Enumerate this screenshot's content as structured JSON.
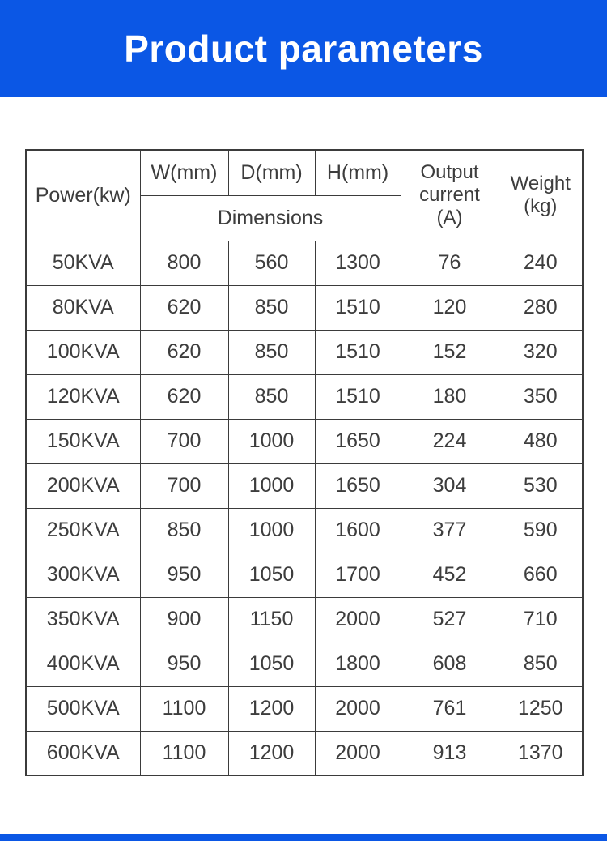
{
  "banner": {
    "title": "Product parameters"
  },
  "colors": {
    "accent_blue": "#0b57e5",
    "border_gray": "#3b3b3b",
    "text_gray": "#3d3d3d"
  },
  "table": {
    "header": {
      "power": "Power(kw)",
      "w": "W(mm)",
      "d": "D(mm)",
      "h": "H(mm)",
      "dimensions": "Dimensions",
      "output_current": "Output\ncurrent\n(A)",
      "weight": "Weight\n(kg)"
    },
    "rows": [
      {
        "power": "50KVA",
        "w": "800",
        "d": "560",
        "h": "1300",
        "current": "76",
        "weight": "240"
      },
      {
        "power": "80KVA",
        "w": "620",
        "d": "850",
        "h": "1510",
        "current": "120",
        "weight": "280"
      },
      {
        "power": "100KVA",
        "w": "620",
        "d": "850",
        "h": "1510",
        "current": "152",
        "weight": "320"
      },
      {
        "power": "120KVA",
        "w": "620",
        "d": "850",
        "h": "1510",
        "current": "180",
        "weight": "350"
      },
      {
        "power": "150KVA",
        "w": "700",
        "d": "1000",
        "h": "1650",
        "current": "224",
        "weight": "480"
      },
      {
        "power": "200KVA",
        "w": "700",
        "d": "1000",
        "h": "1650",
        "current": "304",
        "weight": "530"
      },
      {
        "power": "250KVA",
        "w": "850",
        "d": "1000",
        "h": "1600",
        "current": "377",
        "weight": "590"
      },
      {
        "power": "300KVA",
        "w": "950",
        "d": "1050",
        "h": "1700",
        "current": "452",
        "weight": "660"
      },
      {
        "power": "350KVA",
        "w": "900",
        "d": "1150",
        "h": "2000",
        "current": "527",
        "weight": "710"
      },
      {
        "power": "400KVA",
        "w": "950",
        "d": "1050",
        "h": "1800",
        "current": "608",
        "weight": "850"
      },
      {
        "power": "500KVA",
        "w": "1100",
        "d": "1200",
        "h": "2000",
        "current": "761",
        "weight": "1250"
      },
      {
        "power": "600KVA",
        "w": "1100",
        "d": "1200",
        "h": "2000",
        "current": "913",
        "weight": "1370"
      }
    ]
  }
}
